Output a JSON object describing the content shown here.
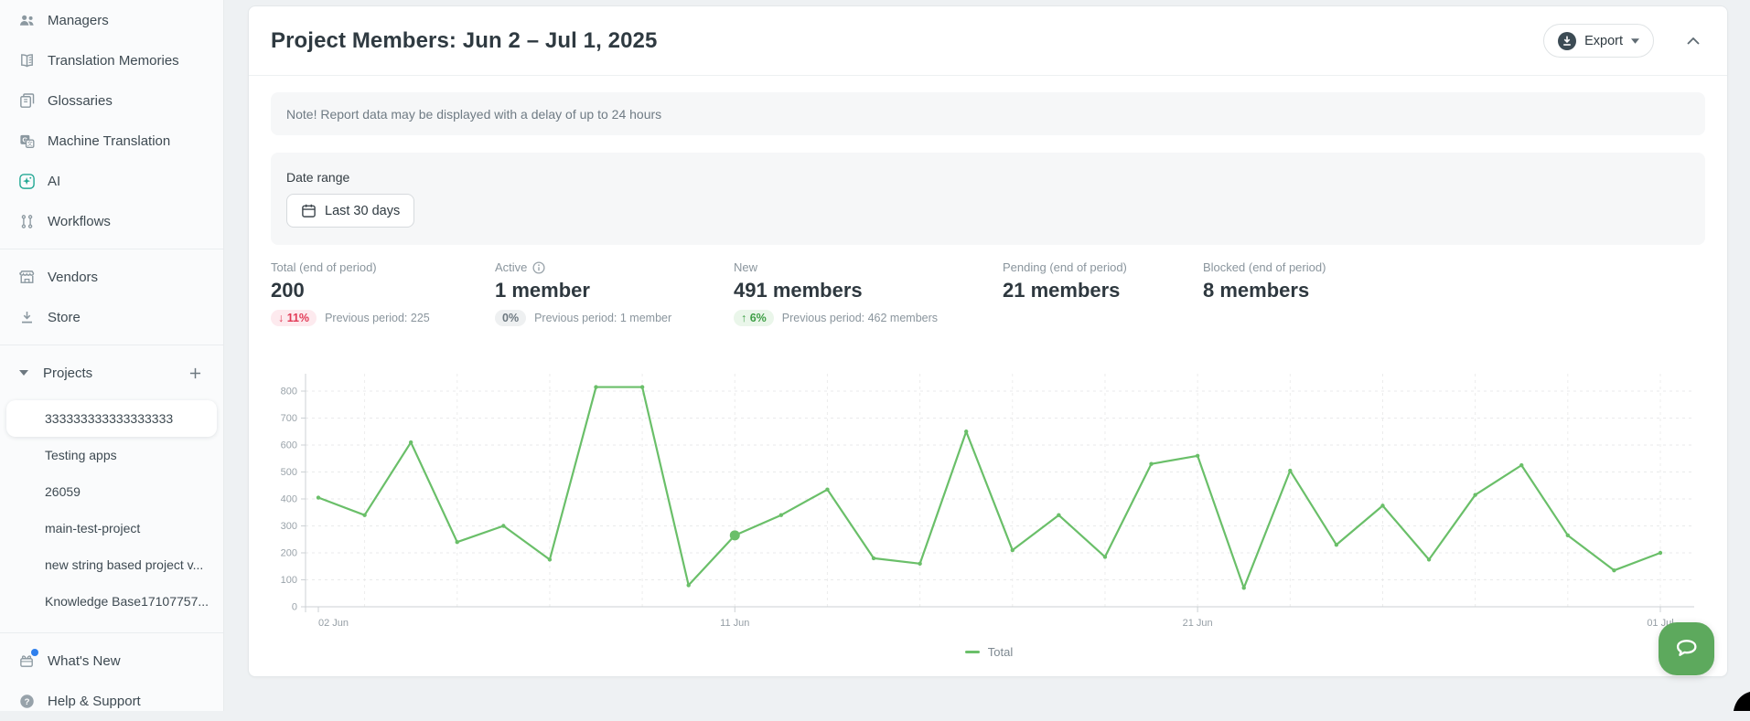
{
  "sidebar": {
    "nav_top": [
      {
        "label": "Managers",
        "icon": "users-icon"
      },
      {
        "label": "Translation Memories",
        "icon": "translation-memories-icon"
      },
      {
        "label": "Glossaries",
        "icon": "glossaries-icon"
      },
      {
        "label": "Machine Translation",
        "icon": "machine-translation-icon"
      },
      {
        "label": "AI",
        "icon": "ai-icon"
      },
      {
        "label": "Workflows",
        "icon": "workflows-icon"
      }
    ],
    "nav_mid": [
      {
        "label": "Vendors",
        "icon": "vendors-icon"
      },
      {
        "label": "Store",
        "icon": "store-icon"
      }
    ],
    "projects": {
      "header": "Projects",
      "collapse_icon": "caret-down-icon",
      "add_icon": "plus-icon",
      "items": [
        {
          "name": "333333333333333333",
          "selected": true
        },
        {
          "name": "Testing apps",
          "selected": false
        },
        {
          "name": "26059",
          "selected": false
        },
        {
          "name": "main-test-project",
          "selected": false
        },
        {
          "name": "new string based project v...",
          "selected": false
        },
        {
          "name": "Knowledge Base17107757...",
          "selected": false
        }
      ]
    },
    "nav_bottom": [
      {
        "label": "What's New",
        "icon": "whats-new-icon",
        "notification_dot": true
      },
      {
        "label": "Help & Support",
        "icon": "help-icon",
        "notification_dot": false
      }
    ]
  },
  "header": {
    "title": "Project Members: Jun 2 – Jul 1, 2025",
    "export_label": "Export",
    "export_icon": "download-circle-icon",
    "collapse_icon": "chevron-up-icon"
  },
  "note": {
    "text": "Note! Report data may be displayed with a delay of up to 24 hours"
  },
  "date_range": {
    "label": "Date range",
    "value": "Last 30 days",
    "icon": "calendar-icon"
  },
  "stats": [
    {
      "label": "Total (end of period)",
      "value": "200",
      "badge": {
        "text": "11%",
        "direction": "down"
      },
      "previous": "Previous period: 225",
      "info": false
    },
    {
      "label": "Active",
      "value": "1 member",
      "badge": {
        "text": "0%",
        "direction": "neutral"
      },
      "previous": "Previous period: 1 member",
      "info": true
    },
    {
      "label": "New",
      "value": "491 members",
      "badge": {
        "text": "6%",
        "direction": "up"
      },
      "previous": "Previous period: 462 members",
      "info": false
    },
    {
      "label": "Pending (end of period)",
      "value": "21 members",
      "badge": null,
      "previous": "",
      "info": false
    },
    {
      "label": "Blocked (end of period)",
      "value": "8 members",
      "badge": null,
      "previous": "",
      "info": false
    }
  ],
  "chart_data": {
    "type": "line",
    "title": "",
    "xlabel": "",
    "ylabel": "",
    "categories": [
      "02 Jun",
      "03 Jun",
      "04 Jun",
      "05 Jun",
      "06 Jun",
      "07 Jun",
      "08 Jun",
      "09 Jun",
      "10 Jun",
      "11 Jun",
      "12 Jun",
      "13 Jun",
      "14 Jun",
      "15 Jun",
      "16 Jun",
      "17 Jun",
      "18 Jun",
      "19 Jun",
      "20 Jun",
      "21 Jun",
      "22 Jun",
      "23 Jun",
      "24 Jun",
      "25 Jun",
      "26 Jun",
      "27 Jun",
      "28 Jun",
      "29 Jun",
      "30 Jun",
      "01 Jul"
    ],
    "series": [
      {
        "name": "Total",
        "color": "#6abf69",
        "values": [
          405,
          340,
          610,
          240,
          300,
          175,
          815,
          815,
          80,
          265,
          340,
          435,
          180,
          160,
          650,
          210,
          340,
          185,
          530,
          560,
          70,
          505,
          230,
          375,
          175,
          415,
          525,
          265,
          135,
          200
        ]
      }
    ],
    "y_ticks": [
      0,
      100,
      200,
      300,
      400,
      500,
      600,
      700,
      800
    ],
    "ylim": [
      0,
      880
    ],
    "x_tick_labels": [
      "02 Jun",
      "11 Jun",
      "21 Jun",
      "01 Jul"
    ],
    "x_tick_indices": [
      0,
      9,
      19,
      29
    ],
    "highlight_index": 9,
    "grid": {
      "horizontal": "dashed",
      "vertical": "dashed-every-2-days"
    },
    "legend": {
      "position": "bottom-center",
      "items": [
        "Total"
      ]
    }
  },
  "chat_widget": {
    "icon": "chat-bubble-icon",
    "color": "#5da95d"
  },
  "colors": {
    "accent_green": "#6abf69",
    "selected_bar_green": "#48a14d",
    "badge_down_text": "#e23b57",
    "badge_up_text": "#3f9f46",
    "ai_icon_teal": "#23a894",
    "notification_blue": "#2f80ed",
    "page_background": "#eef1f3"
  }
}
